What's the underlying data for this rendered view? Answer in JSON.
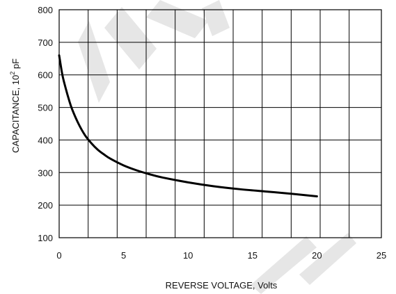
{
  "chart_data": {
    "type": "line",
    "xlabel": "REVERSE VOLTAGE, Volts",
    "ylabel": {
      "prefix": "CAPACITANCE, 10",
      "exponent": "2",
      "unit": " pF"
    },
    "xlim": [
      0,
      25
    ],
    "ylim": [
      100,
      800
    ],
    "xticks": [
      0,
      5,
      10,
      15,
      20,
      25
    ],
    "yticks": [
      100,
      200,
      300,
      400,
      500,
      600,
      700,
      800
    ],
    "x_gridlines": [
      0,
      2.25,
      4.5,
      6.75,
      9,
      11.25,
      13.5,
      15.75,
      18,
      20.25,
      22.5,
      25
    ],
    "y_gridlines": [
      100,
      200,
      300,
      400,
      500,
      600,
      700,
      800
    ],
    "grid": true,
    "series": [
      {
        "x": [
          0,
          0.25,
          0.5,
          0.75,
          1,
          1.5,
          2,
          2.5,
          3,
          3.5,
          4,
          5,
          6,
          7,
          8,
          10,
          12,
          14,
          16,
          18,
          20
        ],
        "y": [
          660,
          600,
          560,
          525,
          495,
          450,
          415,
          390,
          370,
          355,
          342,
          322,
          307,
          295,
          285,
          270,
          258,
          249,
          242,
          235,
          227
        ],
        "color": "#000000"
      }
    ]
  }
}
